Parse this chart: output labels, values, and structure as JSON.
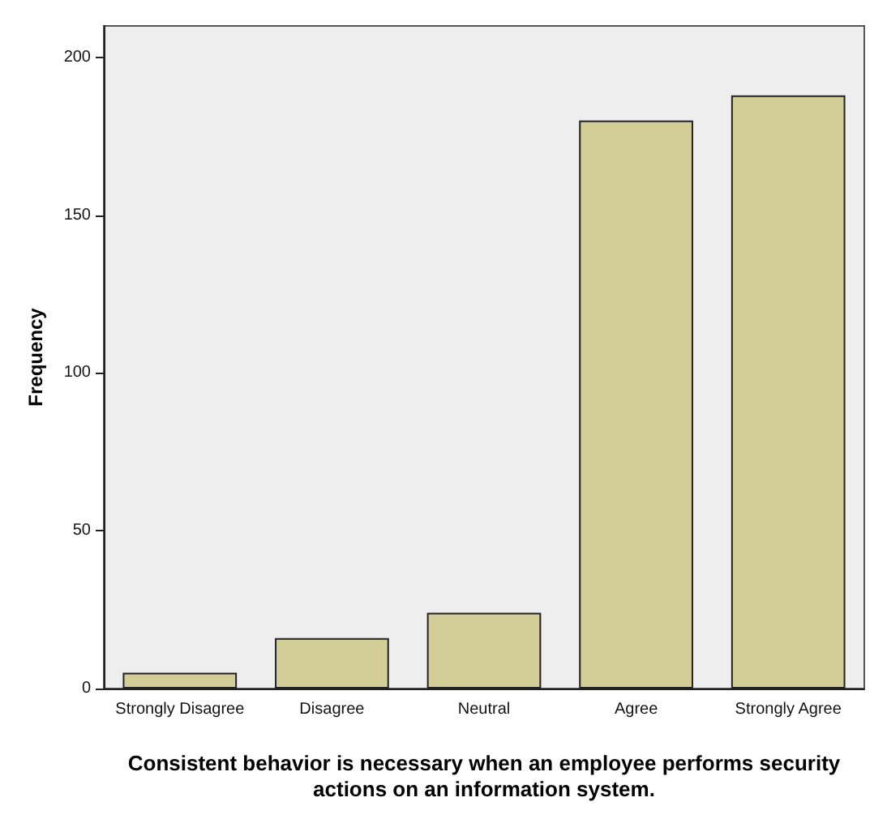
{
  "chart_data": {
    "type": "bar",
    "categories": [
      "Strongly Disagree",
      "Disagree",
      "Neutral",
      "Agree",
      "Strongly Agree"
    ],
    "values": [
      5,
      16,
      24,
      180,
      188
    ],
    "color": "#d3cd97",
    "ylim": [
      0,
      210
    ],
    "yticks": [
      0,
      50,
      100,
      150,
      200
    ],
    "grid": false,
    "xlabel": "Consistent behavior is necessary when an employee performs security\nactions on an information system.",
    "ylabel": "Frequency"
  }
}
